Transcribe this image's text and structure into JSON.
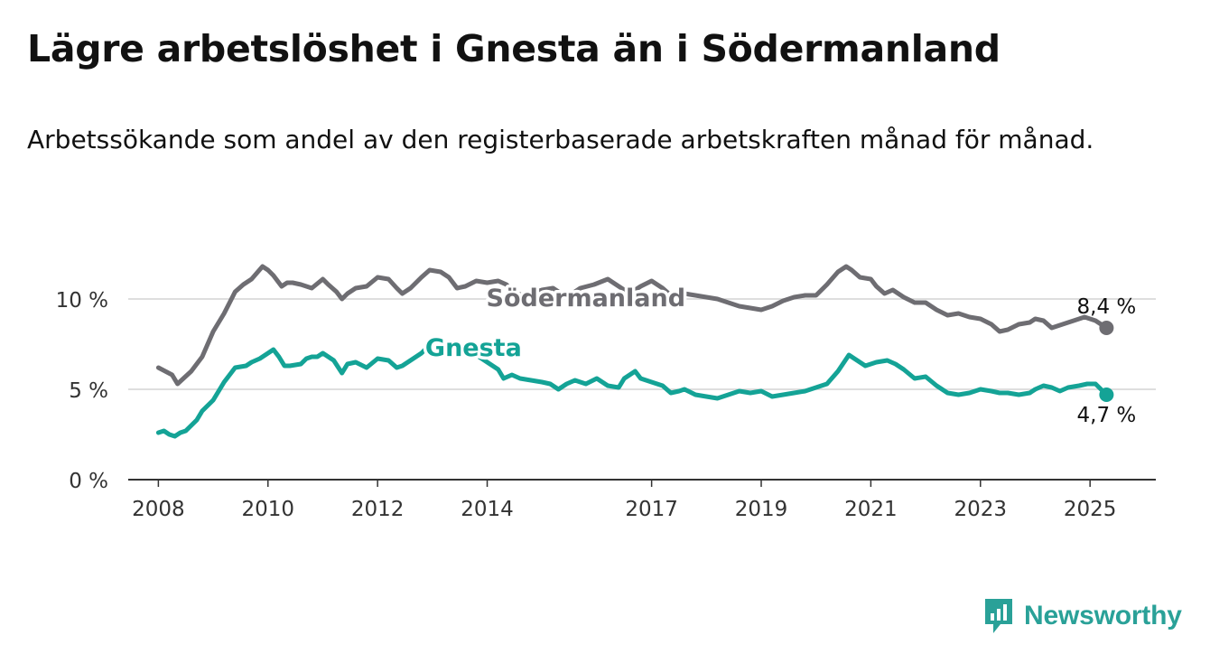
{
  "header": {
    "title": "Lägre arbetslöshet i Gnesta än i Södermanland",
    "subtitle": "Arbetssökande som andel av den registerbaserade arbetskraften månad för månad."
  },
  "brand": {
    "name": "Newsworthy",
    "icon": "newsworthy-logo-icon",
    "color": "#2aa198"
  },
  "chart_data": {
    "type": "line",
    "title": "Lägre arbetslöshet i Gnesta än i Södermanland",
    "subtitle": "Arbetssökande som andel av den registerbaserade arbetskraften månad för månad.",
    "xlabel": "",
    "ylabel": "",
    "ylim": [
      0,
      10
    ],
    "xlim": [
      2007.45,
      2026.2
    ],
    "grid": true,
    "y_ticks": [
      {
        "value": 0,
        "label": "0 %"
      },
      {
        "value": 5,
        "label": "5 %"
      },
      {
        "value": 10,
        "label": "10 %"
      }
    ],
    "x_ticks": [
      {
        "value": 2008,
        "label": "2008"
      },
      {
        "value": 2010,
        "label": "2010"
      },
      {
        "value": 2012,
        "label": "2012"
      },
      {
        "value": 2014,
        "label": "2014"
      },
      {
        "value": 2017,
        "label": "2017"
      },
      {
        "value": 2019,
        "label": "2019"
      },
      {
        "value": 2021,
        "label": "2021"
      },
      {
        "value": 2023,
        "label": "2023"
      },
      {
        "value": 2025,
        "label": "2025"
      }
    ],
    "series": [
      {
        "name": "Södermanland",
        "color": "#6e6d72",
        "label_at": [
          2015.8,
          9.6
        ],
        "end_label": "8,4 %",
        "end_label_position": "above",
        "x": [
          2008.0,
          2008.25,
          2008.35,
          2008.6,
          2008.8,
          2009.0,
          2009.2,
          2009.4,
          2009.55,
          2009.7,
          2009.9,
          2010.0,
          2010.1,
          2010.25,
          2010.35,
          2010.45,
          2010.6,
          2010.8,
          2011.0,
          2011.1,
          2011.25,
          2011.35,
          2011.45,
          2011.6,
          2011.8,
          2012.0,
          2012.2,
          2012.35,
          2012.45,
          2012.6,
          2012.8,
          2012.95,
          2013.15,
          2013.3,
          2013.45,
          2013.6,
          2013.8,
          2014.0,
          2014.2,
          2014.35,
          2014.5,
          2014.7,
          2014.9,
          2015.0,
          2015.2,
          2015.3,
          2015.45,
          2015.7,
          2015.95,
          2016.2,
          2016.4,
          2016.6,
          2016.8,
          2017.0,
          2017.2,
          2017.35,
          2017.6,
          2017.8,
          2018.0,
          2018.2,
          2018.4,
          2018.6,
          2018.8,
          2019.0,
          2019.2,
          2019.4,
          2019.6,
          2019.8,
          2020.0,
          2020.2,
          2020.4,
          2020.55,
          2020.65,
          2020.8,
          2021.0,
          2021.1,
          2021.25,
          2021.4,
          2021.6,
          2021.8,
          2022.0,
          2022.2,
          2022.4,
          2022.6,
          2022.8,
          2023.0,
          2023.2,
          2023.35,
          2023.5,
          2023.7,
          2023.9,
          2024.0,
          2024.15,
          2024.3,
          2024.5,
          2024.7,
          2024.9,
          2025.1,
          2025.3
        ],
        "values": [
          6.2,
          5.8,
          5.3,
          6.0,
          6.8,
          8.2,
          9.2,
          10.4,
          10.8,
          11.1,
          11.8,
          11.6,
          11.3,
          10.7,
          10.9,
          10.9,
          10.8,
          10.6,
          11.1,
          10.8,
          10.4,
          10.0,
          10.3,
          10.6,
          10.7,
          11.2,
          11.1,
          10.6,
          10.3,
          10.6,
          11.2,
          11.6,
          11.5,
          11.2,
          10.6,
          10.7,
          11.0,
          10.9,
          11.0,
          10.8,
          10.3,
          10.2,
          10.4,
          10.5,
          10.6,
          10.4,
          10.1,
          10.6,
          10.8,
          11.1,
          10.7,
          10.3,
          10.7,
          11.0,
          10.6,
          10.2,
          10.3,
          10.2,
          10.1,
          10.0,
          9.8,
          9.6,
          9.5,
          9.4,
          9.6,
          9.9,
          10.1,
          10.2,
          10.2,
          10.8,
          11.5,
          11.8,
          11.6,
          11.2,
          11.1,
          10.7,
          10.3,
          10.5,
          10.1,
          9.8,
          9.8,
          9.4,
          9.1,
          9.2,
          9.0,
          8.9,
          8.6,
          8.2,
          8.3,
          8.6,
          8.7,
          8.9,
          8.8,
          8.4,
          8.6,
          8.8,
          9.0,
          8.8,
          8.4
        ]
      },
      {
        "name": "Gnesta",
        "color": "#14a396",
        "label_at": [
          2013.75,
          6.85
        ],
        "end_label": "4,7 %",
        "end_label_position": "below",
        "x": [
          2008.0,
          2008.1,
          2008.2,
          2008.3,
          2008.4,
          2008.5,
          2008.6,
          2008.7,
          2008.8,
          2009.0,
          2009.2,
          2009.4,
          2009.6,
          2009.7,
          2009.85,
          2010.0,
          2010.1,
          2010.2,
          2010.3,
          2010.4,
          2010.6,
          2010.7,
          2010.8,
          2010.9,
          2011.0,
          2011.2,
          2011.35,
          2011.45,
          2011.6,
          2011.8,
          2012.0,
          2012.2,
          2012.35,
          2012.45,
          2012.6,
          2012.8,
          2013.0,
          2013.1,
          2013.2,
          2013.4,
          2013.6,
          2014.2,
          2014.3,
          2014.45,
          2014.6,
          2014.8,
          2015.0,
          2015.15,
          2015.3,
          2015.45,
          2015.6,
          2015.8,
          2016.0,
          2016.2,
          2016.4,
          2016.5,
          2016.7,
          2016.8,
          2017.0,
          2017.2,
          2017.35,
          2017.5,
          2017.6,
          2017.8,
          2018.0,
          2018.2,
          2018.4,
          2018.6,
          2018.8,
          2019.0,
          2019.2,
          2019.4,
          2019.6,
          2019.8,
          2020.0,
          2020.2,
          2020.4,
          2020.6,
          2020.75,
          2020.9,
          2021.1,
          2021.3,
          2021.45,
          2021.6,
          2021.8,
          2022.0,
          2022.2,
          2022.4,
          2022.6,
          2022.8,
          2023.0,
          2023.2,
          2023.35,
          2023.5,
          2023.7,
          2023.9,
          2024.0,
          2024.15,
          2024.3,
          2024.45,
          2024.6,
          2024.8,
          2024.95,
          2025.1,
          2025.3
        ],
        "values": [
          2.6,
          2.7,
          2.5,
          2.4,
          2.6,
          2.7,
          3.0,
          3.3,
          3.8,
          4.4,
          5.4,
          6.2,
          6.3,
          6.5,
          6.7,
          7.0,
          7.2,
          6.8,
          6.3,
          6.3,
          6.4,
          6.7,
          6.8,
          6.8,
          7.0,
          6.6,
          5.9,
          6.4,
          6.5,
          6.2,
          6.7,
          6.6,
          6.2,
          6.3,
          6.6,
          7.0,
          7.6,
          7.8,
          7.4,
          7.6,
          7.3,
          6.1,
          5.6,
          5.8,
          5.6,
          5.5,
          5.4,
          5.3,
          5.0,
          5.3,
          5.5,
          5.3,
          5.6,
          5.2,
          5.1,
          5.6,
          6.0,
          5.6,
          5.4,
          5.2,
          4.8,
          4.9,
          5.0,
          4.7,
          4.6,
          4.5,
          4.7,
          4.9,
          4.8,
          4.9,
          4.6,
          4.7,
          4.8,
          4.9,
          5.1,
          5.3,
          6.0,
          6.9,
          6.6,
          6.3,
          6.5,
          6.6,
          6.4,
          6.1,
          5.6,
          5.7,
          5.2,
          4.8,
          4.7,
          4.8,
          5.0,
          4.9,
          4.8,
          4.8,
          4.7,
          4.8,
          5.0,
          5.2,
          5.1,
          4.9,
          5.1,
          5.2,
          5.3,
          5.3,
          4.7
        ]
      }
    ]
  }
}
